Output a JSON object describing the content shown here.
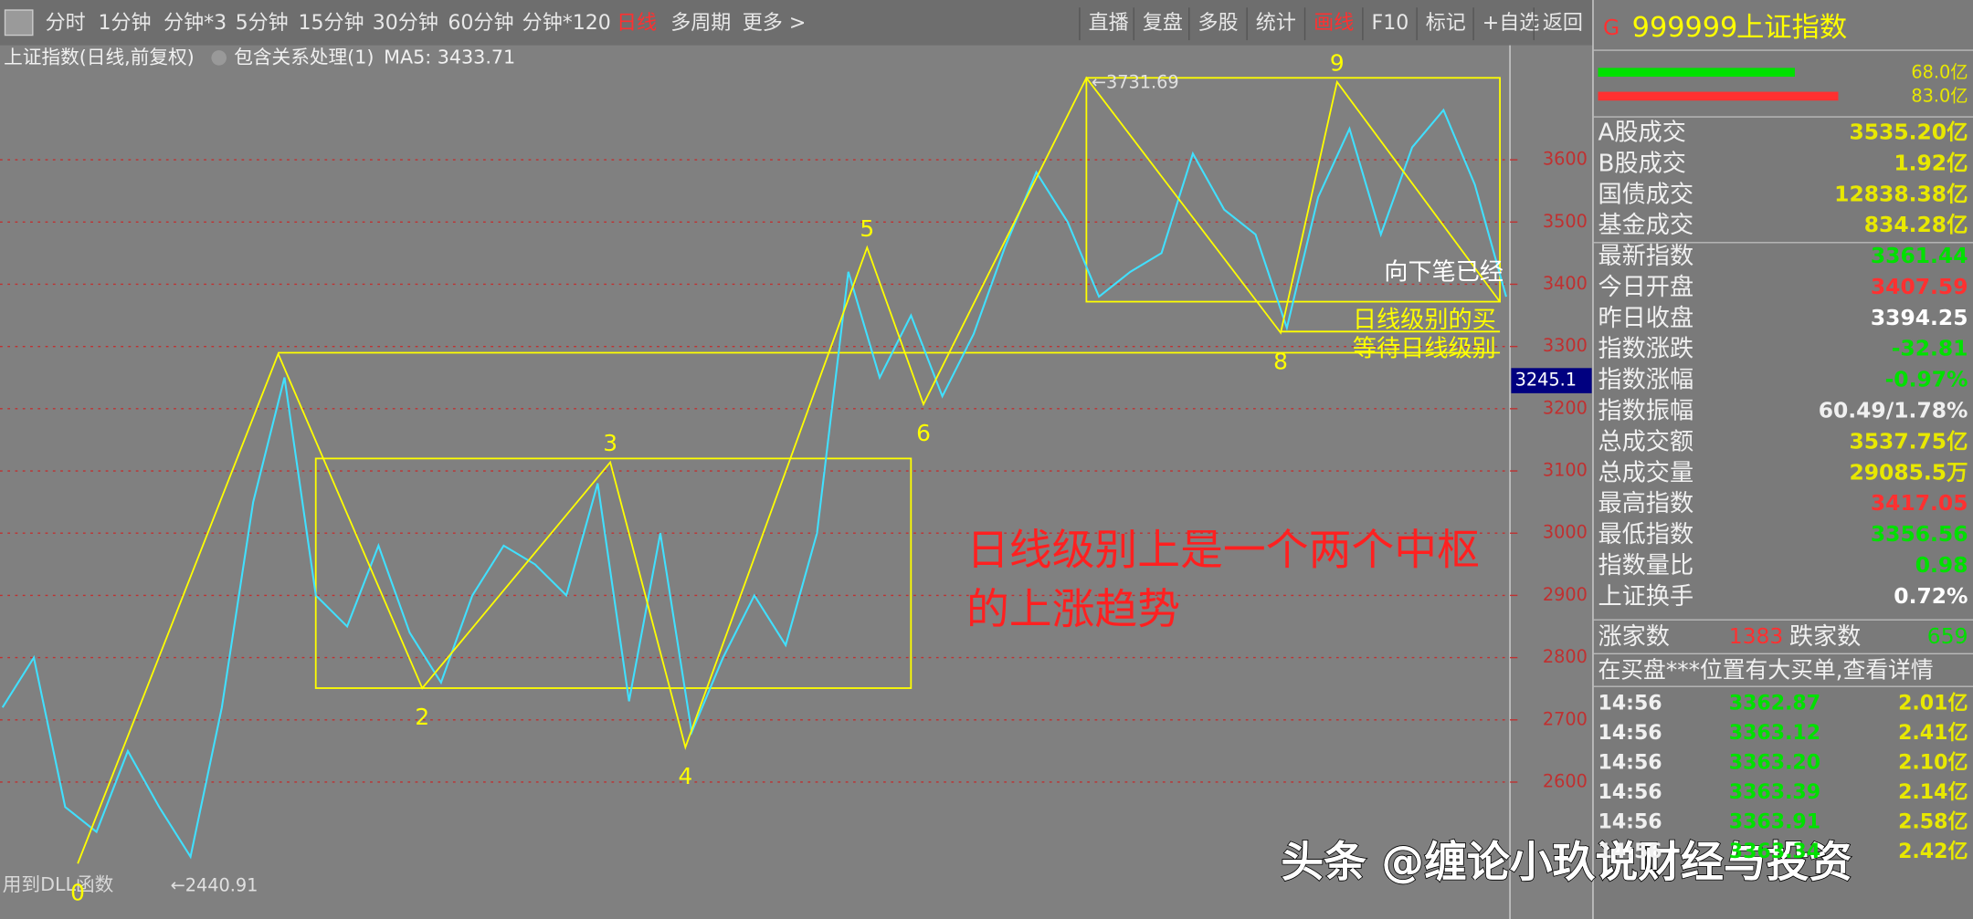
{
  "toolbar": {
    "left": [
      {
        "label": "分时"
      },
      {
        "label": "1分钟"
      },
      {
        "label": "分钟*3"
      },
      {
        "label": "5分钟"
      },
      {
        "label": "15分钟"
      },
      {
        "label": "30分钟"
      },
      {
        "label": "60分钟"
      },
      {
        "label": "分钟*120"
      },
      {
        "label": "日线",
        "active": true
      },
      {
        "label": "多周期"
      },
      {
        "label": "更多 >"
      }
    ],
    "right": [
      {
        "label": "直播"
      },
      {
        "label": "复盘"
      },
      {
        "label": "多股"
      },
      {
        "label": "统计"
      },
      {
        "label": "画线",
        "active": true
      },
      {
        "label": "F10"
      },
      {
        "label": "标记"
      },
      {
        "label": "+自选"
      },
      {
        "label": "返回"
      }
    ]
  },
  "chart_data": {
    "type": "line",
    "title": "上证指数(日线,前复权)",
    "subtitle": "包含关系处理(1)",
    "ma_label": "MA5: 3433.71",
    "xlim": [
      0,
      240
    ],
    "ylim": [
      2380,
      3780
    ],
    "yticks": [
      2600,
      2700,
      2800,
      2900,
      3000,
      3100,
      3200,
      3300,
      3400,
      3500,
      3600
    ],
    "grid": true,
    "color": "#40e0ff",
    "x": [
      0,
      5,
      10,
      15,
      20,
      25,
      30,
      35,
      40,
      45,
      50,
      55,
      60,
      65,
      70,
      75,
      80,
      85,
      90,
      95,
      100,
      105,
      110,
      115,
      120,
      125,
      130,
      135,
      140,
      145,
      150,
      155,
      160,
      165,
      170,
      175,
      180,
      185,
      190,
      195,
      200,
      205,
      210,
      215,
      220,
      225,
      230,
      235,
      240
    ],
    "values": [
      2720,
      2800,
      2560,
      2520,
      2650,
      2560,
      2480,
      2720,
      3050,
      3250,
      2900,
      2850,
      2980,
      2840,
      2760,
      2900,
      2980,
      2950,
      2900,
      3080,
      2730,
      3000,
      2680,
      2800,
      2900,
      2820,
      3000,
      3420,
      3250,
      3350,
      3220,
      3320,
      3460,
      3580,
      3500,
      3380,
      3420,
      3450,
      3610,
      3520,
      3480,
      3330,
      3540,
      3650,
      3480,
      3620,
      3680,
      3560,
      3380
    ],
    "strokes": {
      "color": "#ffff00",
      "x": [
        12,
        44,
        67,
        97,
        109,
        138,
        147,
        173,
        204,
        213,
        239
      ],
      "values": [
        2469,
        3288,
        2751,
        3114,
        2656,
        3459,
        3207,
        3731.69,
        3322,
        3725,
        3372
      ],
      "labels": [
        "0",
        null,
        "2",
        "3",
        "4",
        "5",
        "6",
        null,
        "8",
        "9",
        null
      ]
    },
    "hubs": [
      {
        "x": [
          50,
          145
        ],
        "y": [
          2751,
          3120
        ]
      },
      {
        "x": [
          173,
          239
        ],
        "y": [
          3372,
          3731.69
        ]
      }
    ],
    "levels": [
      {
        "x": [
          44,
          239
        ],
        "value": 3290
      },
      {
        "x": [
          204,
          239
        ],
        "value": 3324
      }
    ],
    "extremes": [
      {
        "text": "←3731.69",
        "x": 173,
        "value": 3731.69
      },
      {
        "text": "←2440.91",
        "x": 26,
        "value": 2440.91
      }
    ],
    "cursor_value": 3245.1,
    "notes": [
      "向下笔已经",
      "日线级别的买",
      "等待日线级别"
    ],
    "headline": [
      "日线级别上是一个两个中枢",
      "的上涨趋势"
    ],
    "footer": "用到DLL函数"
  },
  "watermark": "头条 @缠论小玖说财经与投资",
  "panel": {
    "code": "999999",
    "name": "上证指数",
    "volume_bars": [
      {
        "value": 68.0,
        "label": "68.0亿",
        "color": "#00e000"
      },
      {
        "value": 83.0,
        "label": "83.0亿",
        "color": "#ff3030"
      }
    ],
    "stats": [
      {
        "label": "A股成交",
        "value": "3535.20亿",
        "color": "#e8e800"
      },
      {
        "label": "B股成交",
        "value": "1.92亿",
        "color": "#e8e800"
      },
      {
        "label": "国债成交",
        "value": "12838.38亿",
        "color": "#e8e800"
      },
      {
        "label": "基金成交",
        "value": "834.28亿",
        "color": "#e8e800"
      },
      {
        "label": "最新指数",
        "value": "3361.44",
        "color": "#00e000"
      },
      {
        "label": "今日开盘",
        "value": "3407.59",
        "color": "#ff3030"
      },
      {
        "label": "昨日收盘",
        "value": "3394.25",
        "color": "#ffffff"
      },
      {
        "label": "指数涨跌",
        "value": "-32.81",
        "color": "#00e000"
      },
      {
        "label": "指数涨幅",
        "value": "-0.97%",
        "color": "#00e000"
      },
      {
        "label": "指数振幅",
        "value": "60.49/1.78%",
        "color": "#f0f0f0"
      },
      {
        "label": "总成交额",
        "value": "3537.75亿",
        "color": "#e8e800"
      },
      {
        "label": "总成交量",
        "value": "29085.5万",
        "color": "#e8e800"
      },
      {
        "label": "最高指数",
        "value": "3417.05",
        "color": "#ff3030"
      },
      {
        "label": "最低指数",
        "value": "3356.56",
        "color": "#00e000"
      },
      {
        "label": "指数量比",
        "value": "0.98",
        "color": "#00e000"
      },
      {
        "label": "上证换手",
        "value": "0.72%",
        "color": "#ffffff"
      }
    ],
    "advance_label": "涨家数",
    "advance": 1383,
    "decline_label": "跌家数",
    "decline": 659,
    "notice": "在买盘***位置有大买单,查看详情",
    "trades": [
      {
        "time": "14:56",
        "price": "3362.87",
        "amount": "2.01亿"
      },
      {
        "time": "14:56",
        "price": "3363.12",
        "amount": "2.41亿"
      },
      {
        "time": "14:56",
        "price": "3363.20",
        "amount": "2.10亿"
      },
      {
        "time": "14:56",
        "price": "3363.39",
        "amount": "2.14亿"
      },
      {
        "time": "14:56",
        "price": "3363.91",
        "amount": "2.58亿"
      },
      {
        "time": "14:56",
        "price": "3363.34",
        "amount": "2.42亿"
      }
    ]
  }
}
